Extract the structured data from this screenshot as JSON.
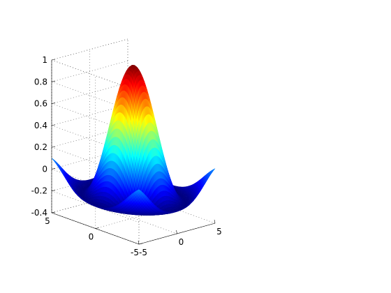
{
  "chart_data": {
    "type": "surface",
    "function": "sin(sqrt(x^2+y^2))/sqrt(x^2+y^2)",
    "colormap": "jet",
    "grid": true,
    "x_range": [
      -5,
      5
    ],
    "y_range": [
      -5,
      5
    ],
    "z_range": [
      -0.4,
      1
    ],
    "x_ticks": [
      -5,
      0,
      5
    ],
    "y_ticks": [
      -5,
      0,
      5
    ],
    "z_ticks": [
      -0.4,
      -0.2,
      0,
      0.2,
      0.4,
      0.6,
      0.8,
      1
    ],
    "x_tick_labels": [
      "-5",
      "0",
      "5"
    ],
    "y_tick_labels": [
      "-5",
      "0",
      "5"
    ],
    "z_tick_labels": [
      "-0.4",
      "-0.2",
      "0",
      "0.2",
      "0.4",
      "0.6",
      "0.8",
      "1"
    ],
    "title": "",
    "xlabel": "",
    "ylabel": "",
    "zlabel": ""
  }
}
